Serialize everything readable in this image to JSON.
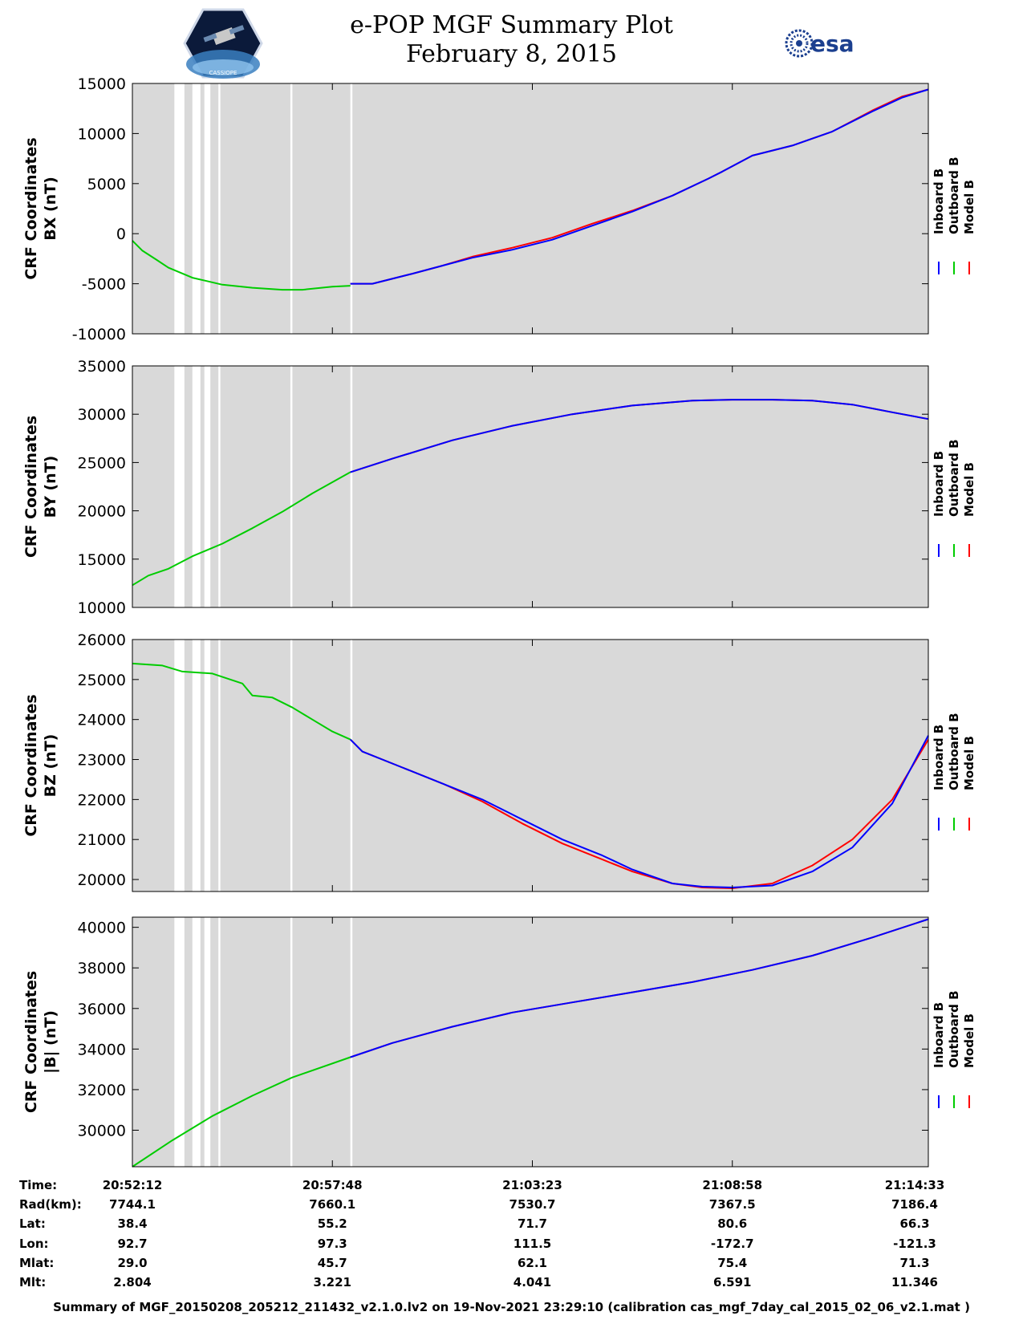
{
  "title": {
    "line1": "e-POP MGF Summary Plot",
    "line2": "February 8, 2015"
  },
  "logos": {
    "left": "cassiope-mission-logo",
    "left_text": "CASSIOPE",
    "right": "esa",
    "right_text": "esa"
  },
  "colors": {
    "inboard": "#0000ff",
    "outboard": "#00cc00",
    "model": "#ff0000",
    "background": "#d9d9d9",
    "gap": "#ffffff"
  },
  "legend": [
    "Inboard B",
    "Outboard B",
    "Model B"
  ],
  "chart_data": [
    {
      "type": "line",
      "ylabel": [
        "CRF Coordinates",
        "BX (nT)"
      ],
      "ylim": [
        -10000,
        15000
      ],
      "yticks": [
        15000,
        10000,
        5000,
        0,
        -5000,
        -10000
      ],
      "x_range_minutes": [
        0,
        22.4
      ],
      "series": [
        {
          "name": "Outboard B",
          "x": [
            0,
            0.5,
            1.2,
            1.8,
            3.0,
            4.5,
            6.0,
            7.5,
            8.5,
            10.0,
            10.9
          ],
          "values": [
            -700,
            -1700,
            -2600,
            -3400,
            -4400,
            -5100,
            -5400,
            -5600,
            -5600,
            -5300,
            -5200
          ]
        },
        {
          "name": "Inboard B",
          "x": [
            10.9,
            12.0,
            14.0,
            15.5,
            17.0,
            19.0,
            21.0,
            23.0,
            25.0,
            27.0,
            28.8,
            29.5,
            31.0,
            33.0,
            35.0,
            37.0,
            38.5,
            39.8
          ],
          "values": [
            -5000,
            -5000,
            -4000,
            -3200,
            -2400,
            -1600,
            -600,
            800,
            2200,
            3800,
            5500,
            6200,
            7800,
            8800,
            10200,
            12200,
            13600,
            14400
          ]
        },
        {
          "name": "Model B",
          "x": [
            10.9,
            12.0,
            14.0,
            15.5,
            17.0,
            19.0,
            21.0,
            23.0,
            25.0,
            27.0,
            28.8,
            29.5,
            31.0,
            33.0,
            35.0,
            37.0,
            38.5,
            39.8
          ],
          "values": [
            -5000,
            -5000,
            -4000,
            -3200,
            -2300,
            -1400,
            -400,
            1000,
            2300,
            3800,
            5500,
            6200,
            7800,
            8800,
            10200,
            12300,
            13700,
            14400
          ]
        }
      ]
    },
    {
      "type": "line",
      "ylabel": [
        "CRF Coordinates",
        "BY (nT)"
      ],
      "ylim": [
        10000,
        35000
      ],
      "yticks": [
        35000,
        30000,
        25000,
        20000,
        15000,
        10000
      ],
      "series": [
        {
          "name": "Outboard B",
          "x": [
            0,
            0.8,
            1.8,
            3.0,
            4.5,
            6.0,
            7.5,
            9.0,
            10.9
          ],
          "values": [
            12300,
            13300,
            14000,
            15300,
            16600,
            18200,
            19900,
            21800,
            24000
          ]
        },
        {
          "name": "Inboard B",
          "x": [
            10.9,
            13.0,
            16.0,
            19.0,
            22.0,
            25.0,
            28.0,
            30.0,
            32.0,
            34.0,
            36.0,
            38.0,
            39.8
          ],
          "values": [
            24000,
            25400,
            27300,
            28800,
            30000,
            30900,
            31400,
            31500,
            31500,
            31400,
            31000,
            30200,
            29500
          ]
        },
        {
          "name": "Model B",
          "x": [
            10.9,
            13.0,
            16.0,
            19.0,
            22.0,
            25.0,
            28.0,
            30.0,
            32.0,
            34.0,
            36.0,
            38.0,
            39.8
          ],
          "values": [
            24000,
            25400,
            27300,
            28800,
            30000,
            30900,
            31400,
            31500,
            31500,
            31400,
            31000,
            30200,
            29500
          ]
        }
      ]
    },
    {
      "type": "line",
      "ylabel": [
        "CRF Coordinates",
        "BZ (nT)"
      ],
      "ylim": [
        19700,
        26000
      ],
      "yticks": [
        26000,
        25000,
        24000,
        23000,
        22000,
        21000,
        20000
      ],
      "series": [
        {
          "name": "Outboard B",
          "x": [
            0,
            1.5,
            2.5,
            4.0,
            5.5,
            6.0,
            7.0,
            8.0,
            9.0,
            10.0,
            10.9
          ],
          "values": [
            25400,
            25350,
            25200,
            25150,
            24900,
            24600,
            24550,
            24300,
            24000,
            23700,
            23500
          ]
        },
        {
          "name": "Inboard B",
          "x": [
            10.9,
            11.5,
            13.5,
            15.5,
            17.5,
            19.5,
            21.5,
            23.5,
            25.0,
            27.0,
            28.5,
            30.0,
            32.0,
            34.0,
            36.0,
            38.0,
            39.8
          ],
          "values": [
            23500,
            23200,
            22800,
            22400,
            22000,
            21500,
            21000,
            20600,
            20250,
            19900,
            19820,
            19800,
            19850,
            20200,
            20800,
            21900,
            23600
          ]
        },
        {
          "name": "Model B",
          "x": [
            10.9,
            11.5,
            13.5,
            15.5,
            17.5,
            19.5,
            21.5,
            23.5,
            25.0,
            27.0,
            28.5,
            30.0,
            32.0,
            34.0,
            36.0,
            38.0,
            39.8
          ],
          "values": [
            23500,
            23200,
            22800,
            22400,
            21950,
            21400,
            20900,
            20500,
            20200,
            19900,
            19800,
            19780,
            19900,
            20350,
            21000,
            22000,
            23500
          ]
        }
      ]
    },
    {
      "type": "line",
      "ylabel": [
        "CRF Coordinates",
        "|B| (nT)"
      ],
      "ylim": [
        28200,
        40500
      ],
      "yticks": [
        40000,
        38000,
        36000,
        34000,
        32000,
        30000
      ],
      "series": [
        {
          "name": "Outboard B",
          "x": [
            0,
            2.0,
            4.0,
            6.0,
            8.0,
            10.9
          ],
          "values": [
            28200,
            29500,
            30700,
            31700,
            32600,
            33600
          ]
        },
        {
          "name": "Inboard B",
          "x": [
            10.9,
            13.0,
            16.0,
            19.0,
            22.0,
            25.0,
            28.0,
            31.0,
            34.0,
            37.0,
            39.8
          ],
          "values": [
            33600,
            34300,
            35100,
            35800,
            36300,
            36800,
            37300,
            37900,
            38600,
            39500,
            40400
          ]
        },
        {
          "name": "Model B",
          "x": [
            10.9,
            13.0,
            16.0,
            19.0,
            22.0,
            25.0,
            28.0,
            31.0,
            34.0,
            37.0,
            39.8
          ],
          "values": [
            33600,
            34300,
            35100,
            35800,
            36300,
            36800,
            37300,
            37900,
            38600,
            39500,
            40400
          ]
        }
      ]
    }
  ],
  "data_gaps_minutes": [
    [
      2.1,
      2.6
    ],
    [
      3.0,
      3.4
    ],
    [
      3.6,
      3.9
    ],
    [
      4.3,
      4.4
    ],
    [
      7.9,
      8.0
    ],
    [
      10.9,
      11.0
    ]
  ],
  "x_axis": {
    "tick_minutes": [
      0,
      10,
      20,
      30,
      40
    ]
  },
  "footer": {
    "labels": [
      "Time:",
      "Rad(km):",
      "Lat:",
      "Lon:",
      "Mlat:",
      "Mlt:"
    ],
    "columns": [
      [
        "20:52:12",
        "7744.1",
        "38.4",
        "92.7",
        "29.0",
        "2.804"
      ],
      [
        "20:57:48",
        "7660.1",
        "55.2",
        "97.3",
        "45.7",
        "3.221"
      ],
      [
        "21:03:23",
        "7530.7",
        "71.7",
        "111.5",
        "62.1",
        "4.041"
      ],
      [
        "21:08:58",
        "7367.5",
        "80.6",
        "-172.7",
        "75.4",
        "6.591"
      ],
      [
        "21:14:33",
        "7186.4",
        "66.3",
        "-121.3",
        "71.3",
        "11.346"
      ]
    ],
    "summary": "Summary of MGF_20150208_205212_211432_v2.1.0.lv2 on 19-Nov-2021 23:29:10 (calibration cas_mgf_7day_cal_2015_02_06_v2.1.mat )"
  }
}
